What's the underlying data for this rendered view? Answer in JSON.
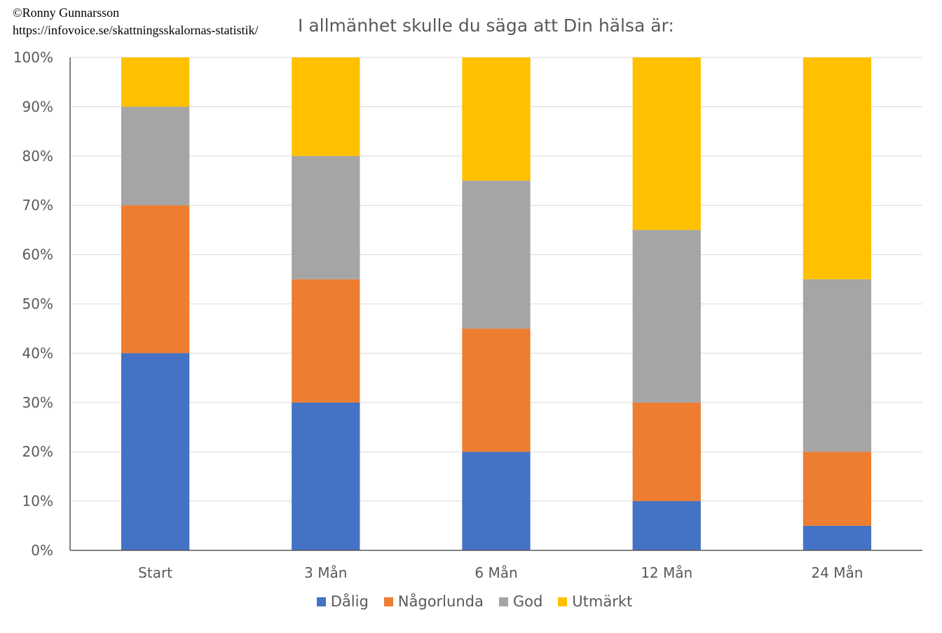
{
  "credit": {
    "author": "©Ronny Gunnarsson",
    "url": "https://infovoice.se/skattningsskalornas-statistik/"
  },
  "chart_data": {
    "type": "bar",
    "stacked": true,
    "title": "I allmänhet skulle du säga att Din hälsa är:",
    "categories": [
      "Start",
      "3 Mån",
      "6 Mån",
      "12 Mån",
      "24 Mån"
    ],
    "series": [
      {
        "name": "Dålig",
        "color": "#4472C4",
        "values": [
          40,
          30,
          20,
          10,
          5
        ]
      },
      {
        "name": "Någorlunda",
        "color": "#ED7D31",
        "values": [
          30,
          25,
          25,
          20,
          15
        ]
      },
      {
        "name": "God",
        "color": "#A5A5A5",
        "values": [
          20,
          25,
          30,
          35,
          35
        ]
      },
      {
        "name": "Utmärkt",
        "color": "#FFC000",
        "values": [
          10,
          20,
          25,
          35,
          45
        ]
      }
    ],
    "ylim": [
      0,
      100
    ],
    "yticks": [
      "0%",
      "10%",
      "20%",
      "30%",
      "40%",
      "50%",
      "60%",
      "70%",
      "80%",
      "90%",
      "100%"
    ],
    "grid": true,
    "legend": "bottom"
  }
}
